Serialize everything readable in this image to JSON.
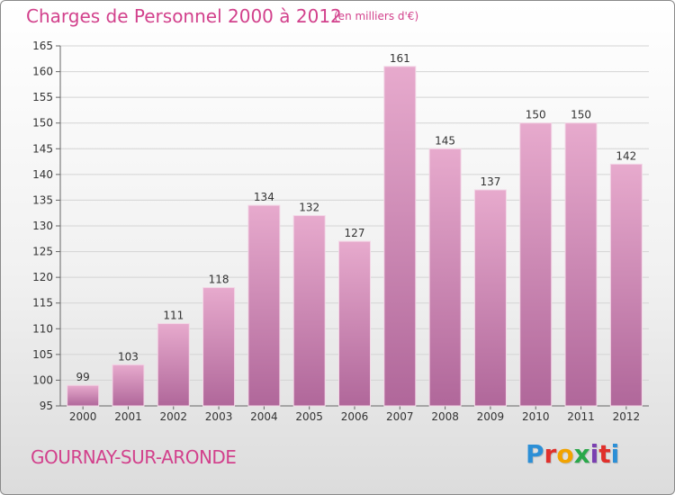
{
  "header": {
    "title": "Charges de Personnel 2000 à 2012",
    "subtitle": "(en milliers d'€)"
  },
  "footer": {
    "commune": "GOURNAY-SUR-ARONDE",
    "logo_text": "Proxiti",
    "logo_colors": [
      "#2c8fd6",
      "#e0302c",
      "#f2a300",
      "#2aa84a",
      "#7a3fb0",
      "#e0302c",
      "#2c8fd6"
    ]
  },
  "colors": {
    "bar_top": "#e7aacd",
    "bar_bottom": "#b0679a",
    "accent": "#d2418c"
  },
  "chart_data": {
    "type": "bar",
    "categories": [
      "2000",
      "2001",
      "2002",
      "2003",
      "2004",
      "2005",
      "2006",
      "2007",
      "2008",
      "2009",
      "2010",
      "2011",
      "2012"
    ],
    "values": [
      99,
      103,
      111,
      118,
      134,
      132,
      127,
      161,
      145,
      137,
      150,
      150,
      142
    ],
    "ylim": [
      95,
      165
    ],
    "yticks": [
      95,
      100,
      105,
      110,
      115,
      120,
      125,
      130,
      135,
      140,
      145,
      150,
      155,
      160,
      165
    ],
    "grid": true
  }
}
